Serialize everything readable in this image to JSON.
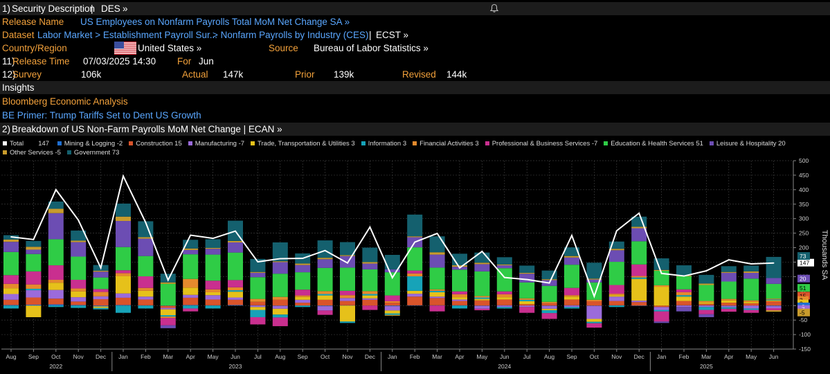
{
  "header": {
    "num": "1)",
    "title": "Security Description",
    "sep": "|",
    "ticker": "DES",
    "chev": "»"
  },
  "release_name": {
    "label": "Release Name",
    "value": "US Employees on Nonfarm Payrolls Total MoM Net Change SA »"
  },
  "dataset": {
    "label": "Dataset",
    "path1": "Labor Market > Establishment Payroll Sur...",
    "path2": "> Nonfarm Payrolls by Industry (CES)",
    "sep": "|",
    "ecst": "ECST »"
  },
  "country": {
    "label": "Country/Region",
    "value": "United States »",
    "source_label": "Source",
    "source_value": "Bureau of Labor Statistics »"
  },
  "release_time": {
    "num": "11)",
    "label": "Release Time",
    "value": "07/03/2025 14:30",
    "for_label": "For",
    "for_value": "Jun"
  },
  "survey": {
    "num": "12)",
    "label": "Survey",
    "value": "106k",
    "actual_label": "Actual",
    "actual_value": "147k",
    "prior_label": "Prior",
    "prior_value": "139k",
    "revised_label": "Revised",
    "revised_value": "144k"
  },
  "insights": {
    "title": "Insights",
    "link1": "Bloomberg Economic Analysis",
    "link2": "BE Primer: Trump Tariffs Set to Dent US Growth"
  },
  "breakdown": {
    "num": "2)",
    "title": "Breakdown of US Non-Farm Payrolls MoM Net Change | ECAN »"
  },
  "chart_data": {
    "type": "bar",
    "stacked": true,
    "ylabel": "Thousands SA",
    "ylim": [
      -150,
      500
    ],
    "y_ticks": [
      -150,
      -100,
      -50,
      0,
      50,
      100,
      150,
      200,
      250,
      300,
      350,
      400,
      450,
      500
    ],
    "categories": [
      "Aug",
      "Sep",
      "Oct",
      "Nov",
      "Dec",
      "Jan",
      "Feb",
      "Mar",
      "Apr",
      "May",
      "Jun",
      "Jul",
      "Aug",
      "Sep",
      "Oct",
      "Nov",
      "Dec",
      "Jan",
      "Feb",
      "Mar",
      "Apr",
      "May",
      "Jun",
      "Jul",
      "Aug",
      "Sep",
      "Oct",
      "Nov",
      "Dec",
      "Jan",
      "Feb",
      "Mar",
      "Apr",
      "May",
      "Jun"
    ],
    "years": [
      {
        "label": "2022",
        "index": 2
      },
      {
        "label": "2023",
        "index": 10
      },
      {
        "label": "2024",
        "index": 22
      },
      {
        "label": "2025",
        "index": 31
      }
    ],
    "series": [
      {
        "name": "Mining & Logging",
        "legend_value": "-2",
        "color": "#1f6fd1",
        "values": [
          2,
          3,
          4,
          2,
          -3,
          2,
          1,
          -1,
          2,
          1,
          2,
          1,
          -1,
          0,
          -2,
          1,
          0,
          -2,
          1,
          1,
          1,
          -1,
          1,
          0,
          -1,
          1,
          -1,
          1,
          -1,
          0,
          1,
          1,
          -1,
          0,
          -2
        ]
      },
      {
        "name": "Construction",
        "legend_value": "15",
        "color": "#d9542b",
        "values": [
          18,
          25,
          20,
          12,
          22,
          25,
          20,
          -7,
          25,
          20,
          18,
          12,
          20,
          10,
          20,
          15,
          20,
          10,
          30,
          25,
          15,
          18,
          20,
          5,
          8,
          20,
          15,
          15,
          12,
          -5,
          15,
          5,
          10,
          8,
          15
        ]
      },
      {
        "name": "Manufacturing",
        "legend_value": "-7",
        "color": "#9b6bdb",
        "values": [
          20,
          25,
          30,
          15,
          10,
          15,
          10,
          -5,
          10,
          15,
          8,
          -5,
          -10,
          10,
          -15,
          10,
          5,
          -15,
          10,
          5,
          5,
          -10,
          -5,
          -5,
          -10,
          -5,
          -45,
          15,
          5,
          -10,
          -5,
          -5,
          -5,
          -10,
          -7
        ]
      },
      {
        "name": "Trade, Transportation & Utilities",
        "legend_value": "3",
        "color": "#e6c11a",
        "values": [
          20,
          -40,
          25,
          20,
          -5,
          60,
          20,
          -20,
          25,
          10,
          20,
          -10,
          -20,
          10,
          15,
          -55,
          10,
          -10,
          10,
          15,
          8,
          5,
          8,
          10,
          -5,
          10,
          -10,
          5,
          75,
          65,
          15,
          5,
          8,
          5,
          3
        ]
      },
      {
        "name": "Information",
        "legend_value": "3",
        "color": "#17a3b8",
        "values": [
          -10,
          5,
          -5,
          -8,
          -5,
          -25,
          -10,
          -5,
          -10,
          -10,
          5,
          -25,
          -10,
          -5,
          5,
          -5,
          5,
          -5,
          50,
          5,
          -10,
          5,
          -5,
          5,
          -10,
          -5,
          -5,
          -5,
          5,
          -5,
          5,
          -10,
          -5,
          -5,
          3
        ]
      },
      {
        "name": "Financial Activities",
        "legend_value": "3",
        "color": "#e58a2d",
        "values": [
          15,
          15,
          10,
          10,
          15,
          10,
          10,
          -5,
          30,
          10,
          10,
          10,
          10,
          5,
          10,
          10,
          10,
          5,
          10,
          5,
          10,
          5,
          10,
          5,
          5,
          5,
          5,
          5,
          5,
          5,
          10,
          5,
          5,
          5,
          3
        ]
      },
      {
        "name": "Professional & Business Services",
        "legend_value": "-7",
        "color": "#c92f8f",
        "values": [
          30,
          45,
          50,
          30,
          10,
          10,
          40,
          -25,
          -10,
          30,
          25,
          -25,
          -30,
          20,
          -15,
          15,
          -15,
          20,
          10,
          -20,
          10,
          -5,
          10,
          -20,
          -20,
          25,
          -15,
          30,
          40,
          -35,
          10,
          -15,
          -10,
          -10,
          -7
        ]
      },
      {
        "name": "Education & Health Services",
        "legend_value": "51",
        "color": "#2fcc46",
        "values": [
          80,
          60,
          90,
          80,
          40,
          80,
          70,
          75,
          85,
          90,
          95,
          75,
          80,
          60,
          80,
          80,
          75,
          80,
          80,
          75,
          75,
          85,
          80,
          55,
          55,
          80,
          60,
          80,
          80,
          50,
          45,
          55,
          60,
          75,
          51
        ]
      },
      {
        "name": "Leisure & Hospitality",
        "legend_value": "20",
        "color": "#6c4db3",
        "values": [
          35,
          15,
          90,
          50,
          20,
          90,
          60,
          -10,
          15,
          20,
          35,
          15,
          40,
          25,
          30,
          40,
          20,
          10,
          35,
          45,
          10,
          25,
          10,
          30,
          20,
          25,
          10,
          40,
          45,
          -5,
          -15,
          -10,
          30,
          20,
          20
        ]
      },
      {
        "name": "Other Services",
        "legend_value": "-5",
        "color": "#c89b2c",
        "values": [
          8,
          10,
          15,
          5,
          3,
          15,
          5,
          5,
          5,
          3,
          5,
          3,
          3,
          5,
          5,
          3,
          5,
          -3,
          3,
          8,
          5,
          5,
          3,
          3,
          3,
          5,
          3,
          5,
          5,
          3,
          3,
          5,
          3,
          5,
          -5
        ]
      },
      {
        "name": "Government",
        "legend_value": "73",
        "color": "#14606e",
        "values": [
          15,
          20,
          25,
          35,
          20,
          45,
          55,
          30,
          30,
          30,
          70,
          45,
          65,
          35,
          60,
          45,
          50,
          50,
          75,
          55,
          40,
          35,
          25,
          25,
          30,
          30,
          55,
          25,
          35,
          40,
          35,
          30,
          20,
          20,
          73
        ]
      }
    ],
    "total": {
      "name": "Total",
      "legend_value": "147",
      "color": "#ffffff",
      "values": [
        237,
        228,
        400,
        295,
        130,
        447,
        287,
        88,
        243,
        232,
        257,
        151,
        162,
        163,
        190,
        147,
        271,
        96,
        219,
        249,
        130,
        187,
        97,
        90,
        78,
        242,
        32,
        258,
        319,
        111,
        102,
        120,
        158,
        144,
        147
      ]
    },
    "right_labels": [
      {
        "value": "147",
        "y": 147,
        "color": "#ffffff",
        "text_color": "#000000"
      },
      {
        "value": "73",
        "y": 170,
        "color": "#14606e",
        "text_color": "#ffffff"
      },
      {
        "value": "20",
        "y": 92,
        "color": "#6c4db3",
        "text_color": "#ffffff"
      },
      {
        "value": "51",
        "y": 60,
        "color": "#2fcc46",
        "text_color": "#000000"
      },
      {
        "value": "15",
        "y": 33,
        "color": "#d9542b",
        "text_color": "#000000"
      },
      {
        "value": "3",
        "y": 18,
        "color": "#e58a2d",
        "text_color": "#000000"
      },
      {
        "value": "3",
        "y": 6,
        "color": "#e6c11a",
        "text_color": "#000000"
      },
      {
        "value": "-2",
        "y": -4,
        "color": "#1f6fd1",
        "text_color": "#ffffff"
      },
      {
        "value": "-7",
        "y": -13,
        "color": "#9b6bdb",
        "text_color": "#ffffff"
      },
      {
        "value": "-5",
        "y": -25,
        "color": "#c89b2c",
        "text_color": "#000000"
      }
    ]
  }
}
